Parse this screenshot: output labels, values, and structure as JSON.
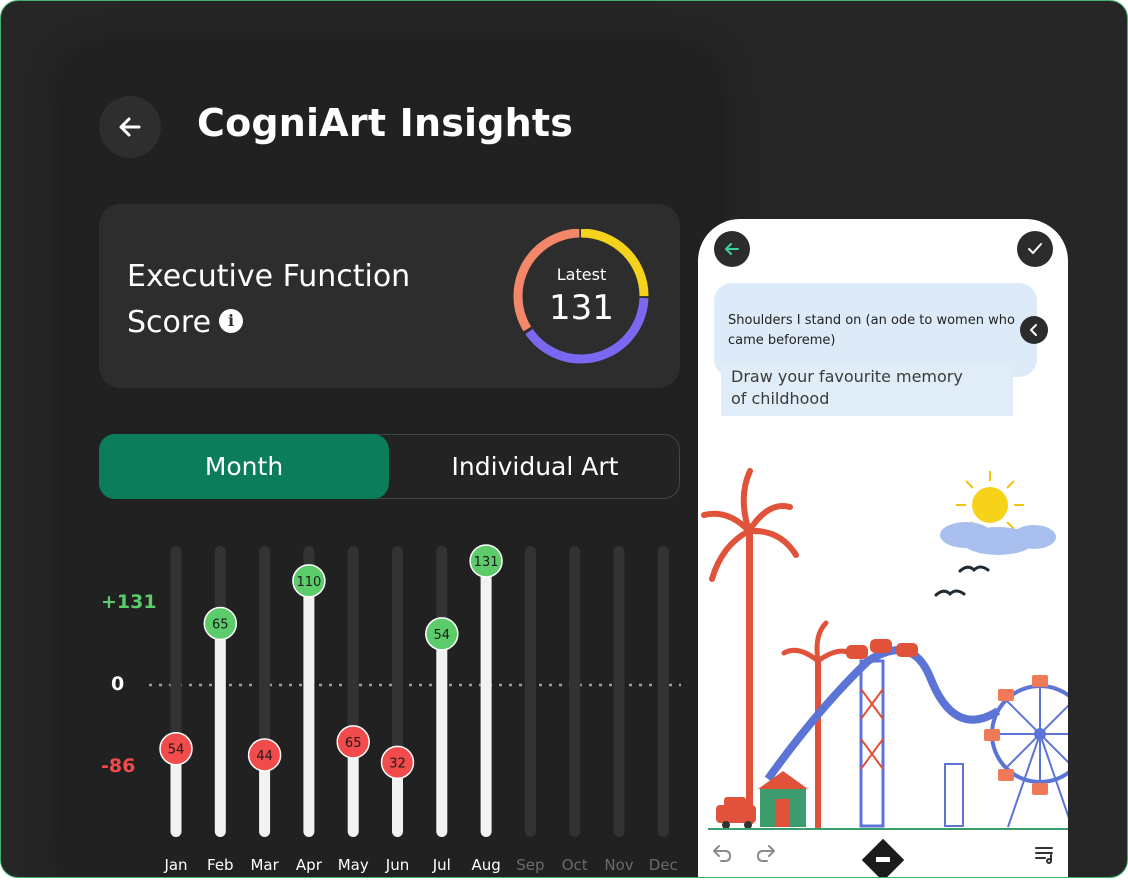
{
  "header": {
    "title": "CogniArt Insights"
  },
  "score_card": {
    "title": "Executive Function Score",
    "latest_label": "Latest",
    "latest_value": "131"
  },
  "tabs": [
    {
      "label": "Month",
      "active": true
    },
    {
      "label": "Individual Art",
      "active": false
    }
  ],
  "chart_data": {
    "type": "bar",
    "categories": [
      "Jan",
      "Feb",
      "Mar",
      "Apr",
      "May",
      "Jun",
      "Jul",
      "Aug",
      "Sep",
      "Oct",
      "Nov",
      "Dec"
    ],
    "values": [
      54,
      65,
      44,
      110,
      65,
      32,
      54,
      131,
      null,
      null,
      null,
      null
    ],
    "value_labels": [
      "54",
      "65",
      "44",
      "110",
      "65",
      "32",
      "54",
      "131",
      "",
      "",
      "",
      ""
    ],
    "status": [
      "low",
      "high",
      "low",
      "high",
      "low",
      "low",
      "high",
      "high",
      "none",
      "none",
      "none",
      "none"
    ],
    "y_labels": {
      "top": "+131",
      "zero": "0",
      "bottom": "-86"
    },
    "colors": {
      "high": "#5ccc6a",
      "low": "#f14b4b",
      "track": "#333333",
      "bar": "#f2f2f2",
      "zero_line": "#9e9e9e"
    }
  },
  "drawing_panel": {
    "prompt": "Shoulders I stand on (an ode to women who came beforeme)",
    "memory_text_line1": "Draw your favourite memory",
    "memory_text_line2": "of childhood"
  },
  "colors": {
    "accent": "#0b7d5a",
    "ring_yellow": "#f5d21c",
    "ring_purple": "#7b68f0",
    "ring_orange": "#f3876a"
  }
}
